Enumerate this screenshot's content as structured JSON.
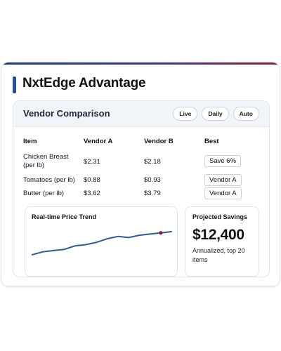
{
  "header": {
    "title": "NxtEdge Advantage"
  },
  "colors": {
    "accent_start": "#1e3a6e",
    "accent_end": "#8a2433",
    "title_marker": "#2452a0",
    "trend_line": "#2f5a9e",
    "trend_marker": "#8b1a2b"
  },
  "comparison": {
    "title": "Vendor Comparison",
    "modes": [
      "Live",
      "Daily",
      "Auto"
    ],
    "columns": [
      "Item",
      "Vendor A",
      "Vendor B",
      "Best"
    ],
    "rows": [
      {
        "item": "Chicken Breast (per lb)",
        "vendor_a": "$2.31",
        "vendor_b": "$2.18",
        "best": "Save 6%"
      },
      {
        "item": "Tomatoes (per lb)",
        "vendor_a": "$0.88",
        "vendor_b": "$0.93",
        "best": "Vendor A"
      },
      {
        "item": "Butter (per lb)",
        "vendor_a": "$3.62",
        "vendor_b": "$3.79",
        "best": "Vendor A"
      }
    ]
  },
  "trend": {
    "title": "Real-time Price Trend"
  },
  "chart_data": {
    "type": "line",
    "title": "Real-time Price Trend",
    "xlabel": "",
    "ylabel": "",
    "grid": false,
    "x": [
      0,
      1,
      2,
      3,
      4,
      5,
      6,
      7,
      8,
      9,
      10,
      11,
      12,
      13
    ],
    "series": [
      {
        "values": [
          20,
          25,
          27,
          29,
          35,
          37,
          41,
          47,
          51,
          49,
          53,
          55,
          57,
          59
        ]
      }
    ],
    "highlight_index": 12,
    "ylim": [
      15,
      65
    ]
  },
  "savings": {
    "label": "Projected Savings",
    "value": "$12,400",
    "note": "Annualized, top 20 items"
  }
}
